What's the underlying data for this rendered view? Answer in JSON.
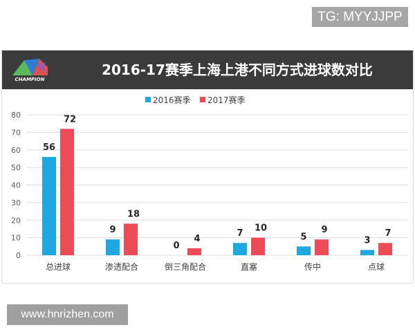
{
  "watermarks": {
    "top": "TG: MYYJJPP",
    "bottom": "www.hnrizhen.com"
  },
  "logo": {
    "text": "CHAMPION"
  },
  "chart_data": {
    "type": "bar",
    "title": "2016-17赛季上海上港不同方式进球数对比",
    "categories": [
      "总进球",
      "渗透配合",
      "倒三角配合",
      "直塞",
      "传中",
      "点球"
    ],
    "series": [
      {
        "name": "2016赛季",
        "values": [
          56,
          9,
          0,
          7,
          5,
          3
        ],
        "color": "#1ea7e1"
      },
      {
        "name": "2017赛季",
        "values": [
          72,
          18,
          4,
          10,
          9,
          7
        ],
        "color": "#ee4b58"
      }
    ],
    "ylim": [
      0,
      80
    ],
    "yticks": [
      0,
      10,
      20,
      30,
      40,
      50,
      60,
      70,
      80
    ],
    "grid": true,
    "legend": "top-center",
    "header_color": "#3b3b3b"
  }
}
